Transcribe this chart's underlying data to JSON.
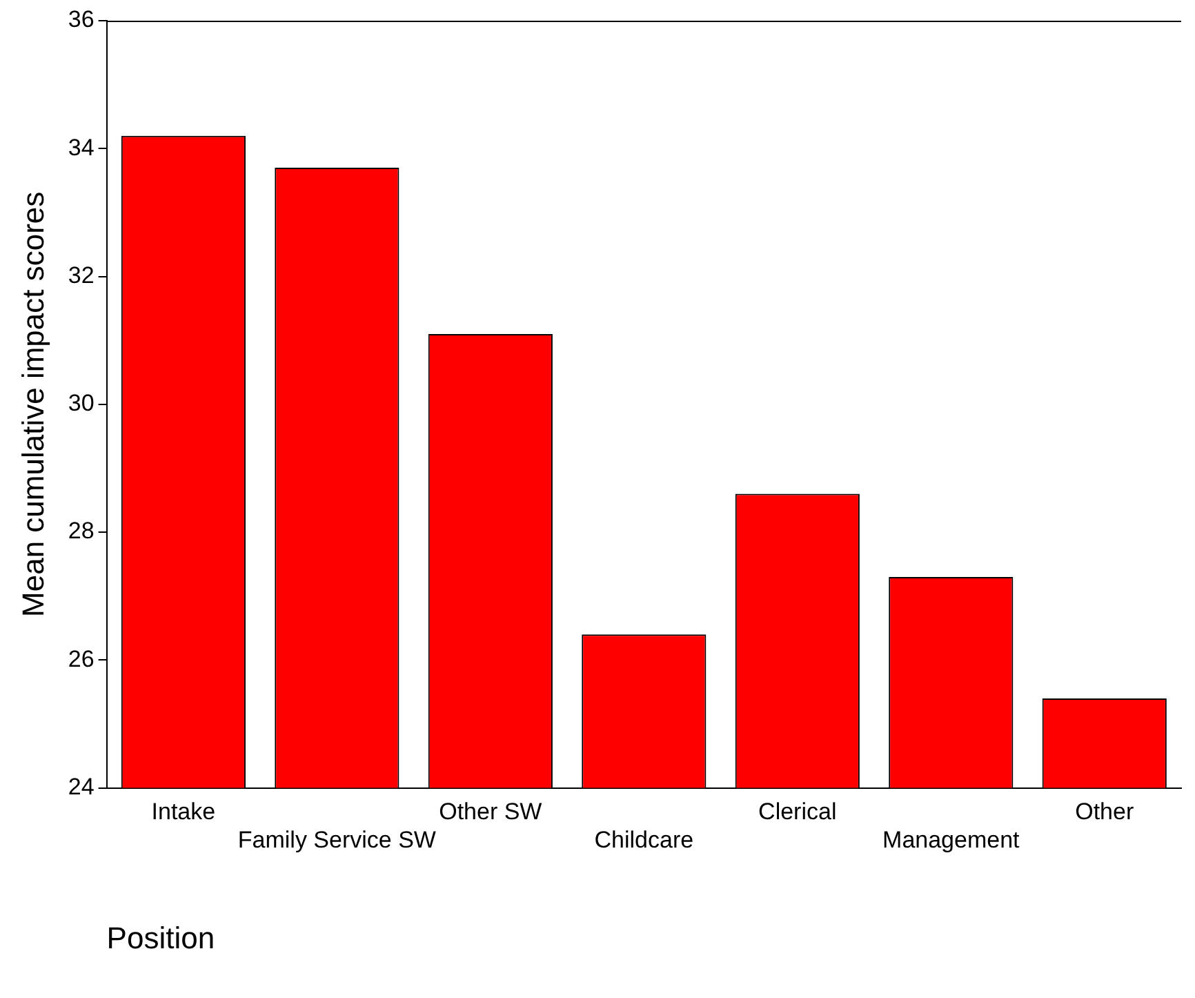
{
  "chart_data": {
    "type": "bar",
    "xlabel": "Position",
    "ylabel": "Mean cumulative impact scores",
    "categories": [
      "Intake",
      "Family Service SW",
      "Other SW",
      "Childcare",
      "Clerical",
      "Management",
      "Other"
    ],
    "values": [
      34.2,
      33.7,
      31.1,
      26.4,
      28.6,
      27.3,
      25.4
    ],
    "color": "#ff0000",
    "ylim": [
      24,
      36
    ],
    "yticks": [
      24,
      26,
      28,
      30,
      32,
      34,
      36
    ],
    "grid": false,
    "legend": false
  }
}
